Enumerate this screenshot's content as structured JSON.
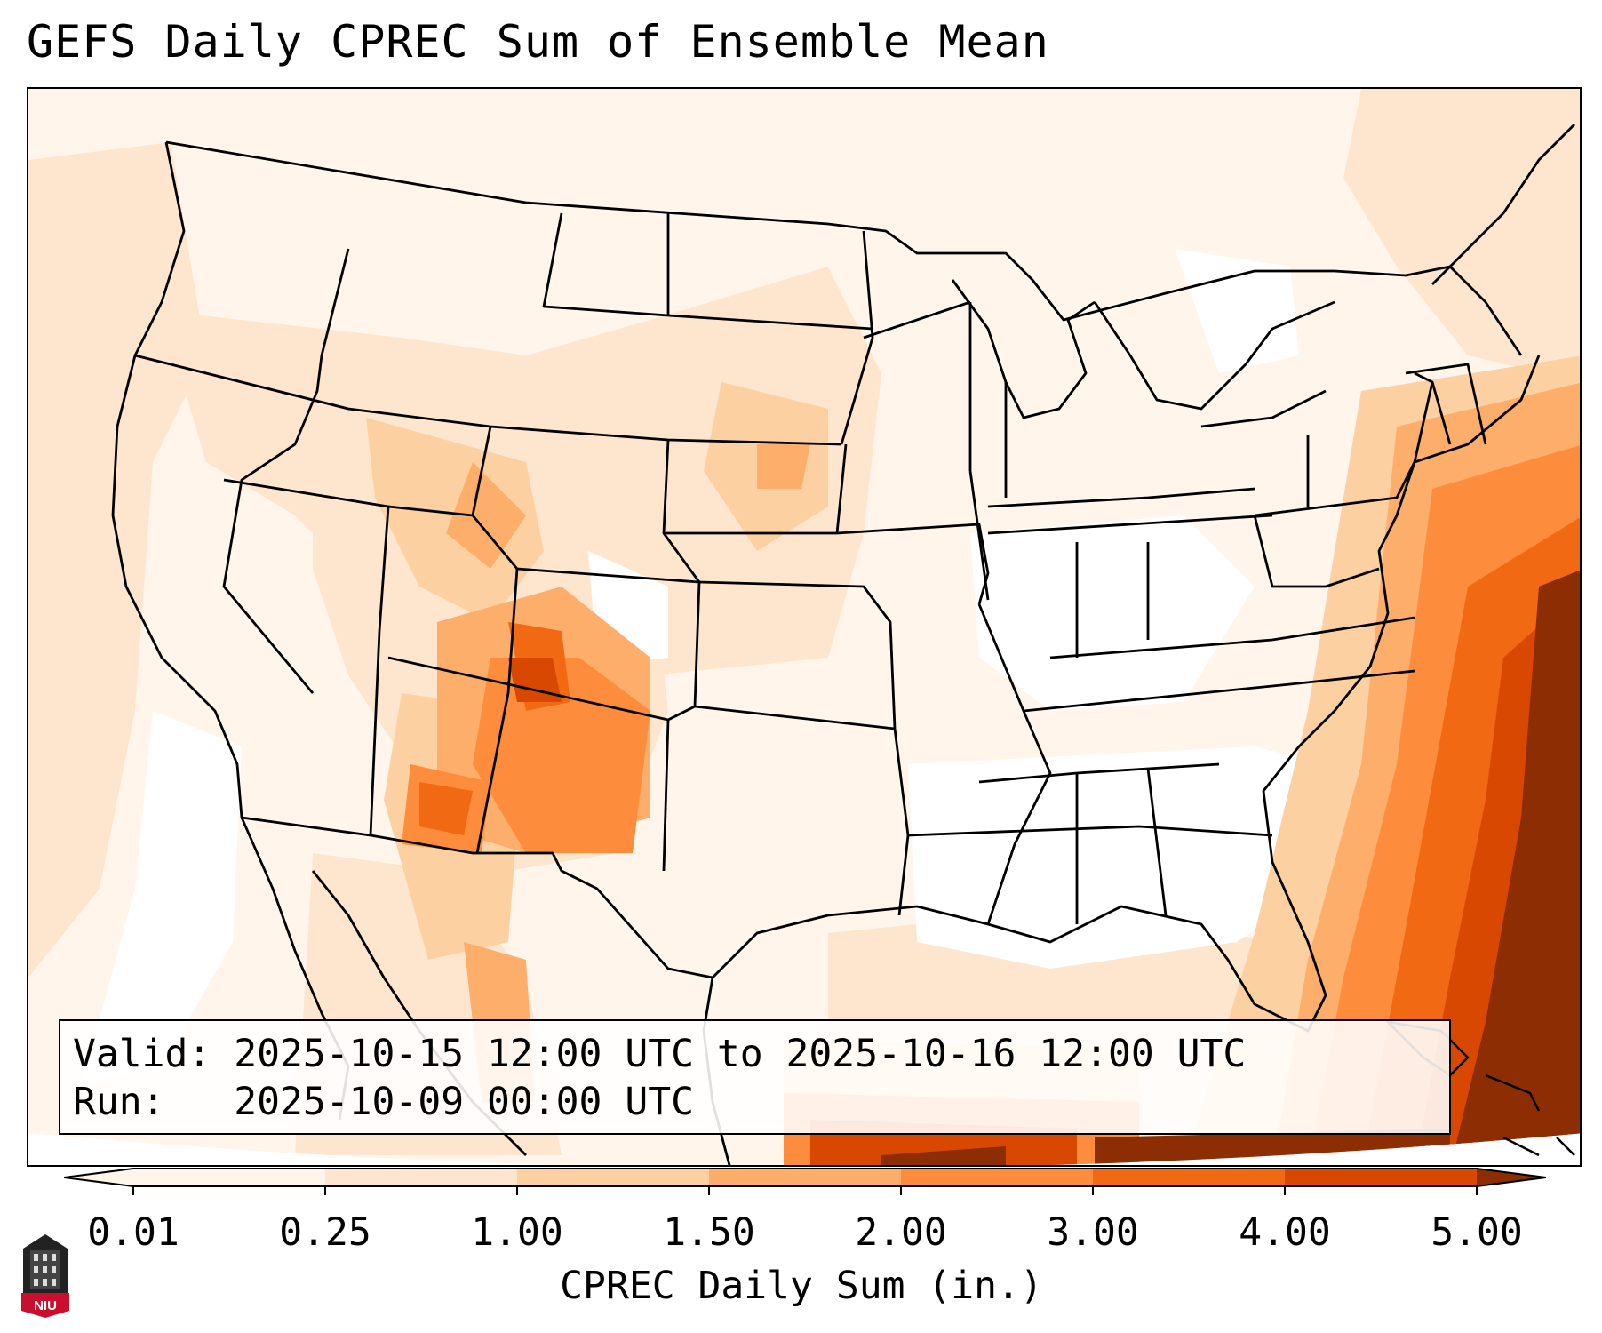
{
  "title": "GEFS Daily CPREC Sum of Ensemble Mean",
  "info": {
    "valid_line": "Valid: 2025-10-15 12:00 UTC to 2025-10-16 12:00 UTC",
    "run_line": "Run:   2025-10-09 00:00 UTC"
  },
  "colorbar": {
    "label": "CPREC Daily Sum (in.)",
    "ticks": [
      "0.01",
      "0.25",
      "1.00",
      "1.50",
      "2.00",
      "3.00",
      "4.00",
      "5.00"
    ],
    "colors": [
      "#fff5eb",
      "#fee6ce",
      "#fdd0a2",
      "#fdae6b",
      "#fd8d3c",
      "#f16913",
      "#d94801",
      "#8c2d04"
    ],
    "extend": "both"
  },
  "logo": {
    "text": "NIU"
  },
  "map": {
    "region": "Contiguous United States, northern Mexico, southern Canada",
    "precip_colors": {
      "level_0": "#ffffff",
      "level_1": "#fff5eb",
      "level_2": "#fee6ce",
      "level_3": "#fdd0a2",
      "level_4": "#fdae6b",
      "level_5": "#fd8d3c",
      "level_6": "#f16913",
      "level_7": "#d94801",
      "level_8": "#8c2d04"
    }
  }
}
